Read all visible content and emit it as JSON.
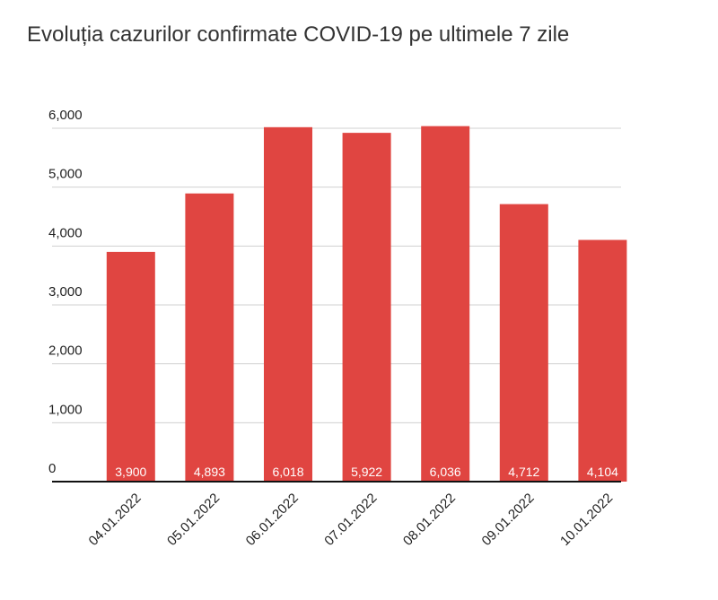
{
  "chart_data": {
    "type": "bar",
    "title": "Evoluția cazurilor confirmate COVID-19 pe ultimele 7 zile",
    "categories": [
      "04.01.2022",
      "05.01.2022",
      "06.01.2022",
      "07.01.2022",
      "08.01.2022",
      "09.01.2022",
      "10.01.2022"
    ],
    "values": [
      3900,
      4893,
      6018,
      5922,
      6036,
      4712,
      4104
    ],
    "value_labels": [
      "3,900",
      "4,893",
      "6,018",
      "5,922",
      "6,036",
      "4,712",
      "4,104"
    ],
    "color": "#e04541",
    "ylim": [
      0,
      6000
    ],
    "yticks": [
      0,
      {
        "value": 1000,
        "label": "1,000"
      },
      {
        "value": 2000,
        "label": "2,000"
      },
      {
        "value": 3000,
        "label": "3,000"
      },
      {
        "value": 4000,
        "label": "4,000"
      },
      {
        "value": 5000,
        "label": "5,000"
      },
      {
        "value": 6000,
        "label": "6,000"
      }
    ],
    "grid": true
  }
}
